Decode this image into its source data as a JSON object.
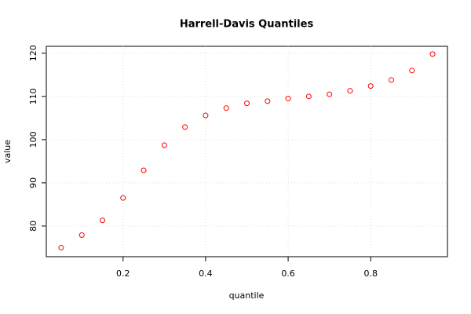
{
  "chart_data": {
    "type": "scatter",
    "title": "Harrell-Davis Quantiles",
    "x_label": "quantile",
    "y_label": "value",
    "x": [
      0.05,
      0.1,
      0.15,
      0.2,
      0.25,
      0.3,
      0.35,
      0.4,
      0.45,
      0.5,
      0.55,
      0.6,
      0.65,
      0.7,
      0.75,
      0.8,
      0.85,
      0.9,
      0.95
    ],
    "values": [
      75.0,
      77.9,
      81.3,
      86.5,
      92.9,
      98.7,
      102.9,
      105.6,
      107.3,
      108.4,
      108.9,
      109.5,
      110.0,
      110.5,
      111.3,
      112.4,
      113.8,
      116.0,
      119.8
    ],
    "color": "#ff0000",
    "xlim": [
      0.014,
      0.986
    ],
    "xticks": [
      0.2,
      0.4,
      0.6,
      0.8
    ],
    "ylim": [
      72.9,
      121.6
    ],
    "yticks": [
      80,
      90,
      100,
      110,
      120
    ],
    "grid": true
  }
}
